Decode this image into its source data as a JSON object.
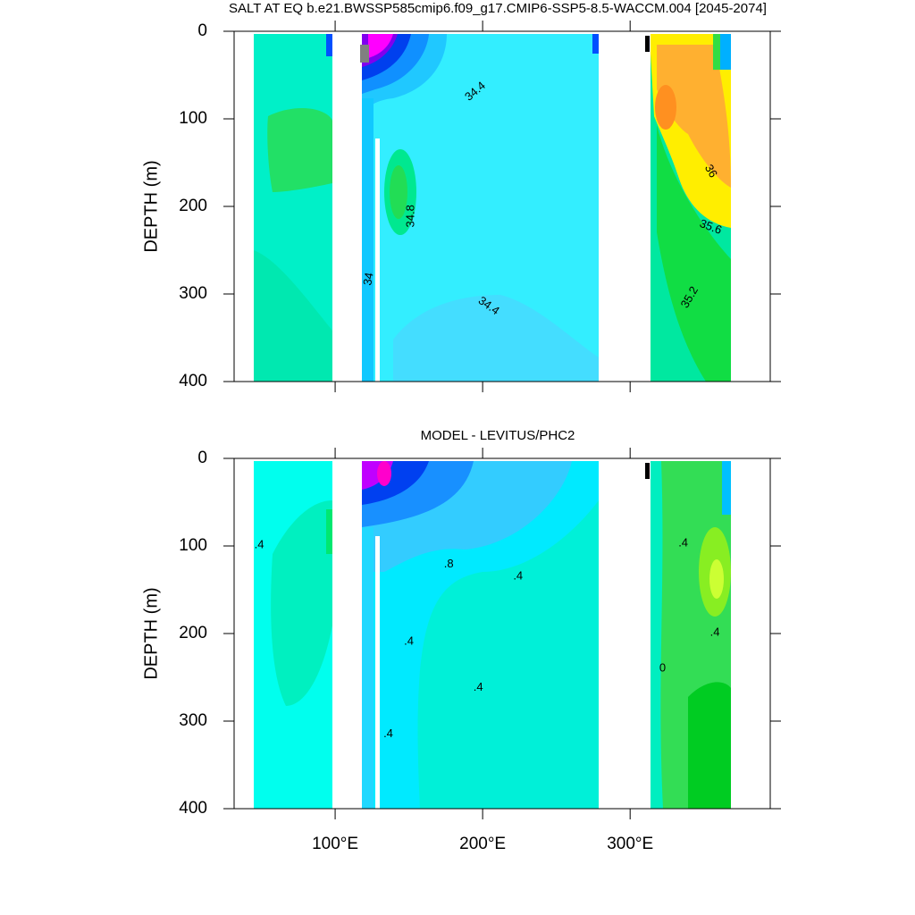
{
  "chart_data": [
    {
      "type": "contour",
      "title": "SALT AT EQ b.e21.BWSSP585cmip6.f09_g17.CMIP6-SSP5-8.5-WACCM.004 [2045-2074]",
      "ylabel": "DEPTH (m)",
      "xlim": [
        31.5,
        395
      ],
      "ylim": [
        0,
        400
      ],
      "y_reversed": true,
      "xticks": [
        100,
        200,
        300
      ],
      "yticks": [
        0,
        100,
        200,
        300,
        400
      ],
      "contour_labels": [
        {
          "value": 34.4,
          "x": 195.2,
          "y": 69
        },
        {
          "value": 34.8,
          "x": 151.5,
          "y": 211
        },
        {
          "value": 34,
          "x": 123,
          "y": 283
        },
        {
          "value": 36,
          "x": 354.5,
          "y": 160
        },
        {
          "value": 35.6,
          "x": 354.5,
          "y": 224
        },
        {
          "value": 35.2,
          "x": 340.6,
          "y": 304
        },
        {
          "value": 34.4,
          "x": 204,
          "y": 314
        }
      ]
    },
    {
      "type": "contour",
      "title": "MODEL - LEVITUS/PHC2",
      "ylabel": "DEPTH (m)",
      "xlim": [
        31.5,
        395
      ],
      "ylim": [
        0,
        400
      ],
      "y_reversed": true,
      "xticks": [
        {
          "value": 100,
          "label": "100°E"
        },
        {
          "value": 200,
          "label": "200°E"
        },
        {
          "value": 300,
          "label": "300°E"
        }
      ],
      "yticks": [
        0,
        100,
        200,
        300,
        400
      ],
      "contour_labels": [
        {
          "value": 0.4,
          "label": ".4",
          "x": 48.5,
          "y": 99
        },
        {
          "value": 0.8,
          "label": ".8",
          "x": 177,
          "y": 121
        },
        {
          "value": 0.4,
          "label": ".4",
          "x": 224,
          "y": 135
        },
        {
          "value": 0.4,
          "label": ".4",
          "x": 150,
          "y": 209
        },
        {
          "value": 0.4,
          "label": ".4",
          "x": 197,
          "y": 262
        },
        {
          "value": 0.4,
          "label": ".4",
          "x": 136,
          "y": 315
        },
        {
          "value": 0.4,
          "label": ".4",
          "x": 336,
          "y": 97
        },
        {
          "value": 0.4,
          "label": ".4",
          "x": 357.5,
          "y": 199
        },
        {
          "value": 0,
          "x": 322,
          "y": 240
        }
      ]
    }
  ]
}
